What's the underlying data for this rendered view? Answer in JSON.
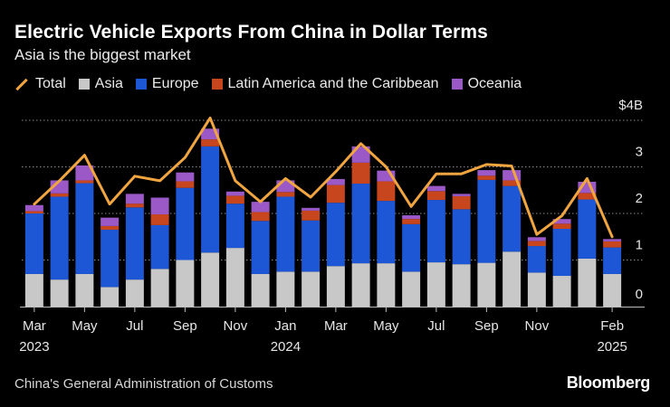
{
  "header": {
    "title": "Electric Vehicle Exports From China in Dollar Terms",
    "subtitle": "Asia is the biggest market"
  },
  "legend": [
    {
      "label": "Total",
      "kind": "line",
      "color": "#f0a540"
    },
    {
      "label": "Asia",
      "kind": "box",
      "color": "#c8c8c8"
    },
    {
      "label": "Europe",
      "kind": "box",
      "color": "#1e57d6"
    },
    {
      "label": "Latin America and the Caribbean",
      "kind": "box",
      "color": "#c8461d"
    },
    {
      "label": "Oceania",
      "kind": "box",
      "color": "#9b59c8"
    }
  ],
  "footer": {
    "source": "China's General Administration of Customs",
    "brand": "Bloomberg"
  },
  "chart_data": {
    "type": "bar",
    "stacked": true,
    "title": "Electric Vehicle Exports From China in Dollar Terms",
    "subtitle": "Asia is the biggest market",
    "unit": "$B",
    "categories": [
      "Mar 2023",
      "Apr 2023",
      "May 2023",
      "Jun 2023",
      "Jul 2023",
      "Aug 2023",
      "Sep 2023",
      "Oct 2023",
      "Nov 2023",
      "Dec 2023",
      "Jan 2024",
      "Feb 2024",
      "Mar 2024",
      "Apr 2024",
      "May 2024",
      "Jun 2024",
      "Jul 2024",
      "Aug 2024",
      "Sep 2024",
      "Oct 2024",
      "Nov 2024",
      "Dec 2024",
      "Jan 2025",
      "Feb 2025"
    ],
    "series": [
      {
        "name": "Asia",
        "color": "#c8c8c8",
        "values": [
          0.7,
          0.58,
          0.7,
          0.42,
          0.58,
          0.81,
          1.0,
          1.16,
          1.26,
          0.7,
          0.75,
          0.75,
          0.87,
          0.93,
          0.93,
          0.75,
          0.95,
          0.91,
          0.94,
          1.18,
          0.73,
          0.66,
          1.03,
          0.7
        ]
      },
      {
        "name": "Europe",
        "color": "#1e57d6",
        "values": [
          1.3,
          1.78,
          1.95,
          1.23,
          1.55,
          0.94,
          1.55,
          2.28,
          0.95,
          1.14,
          1.61,
          1.1,
          1.36,
          1.71,
          1.34,
          1.02,
          1.34,
          1.18,
          1.78,
          1.41,
          0.57,
          1.01,
          1.27,
          0.57
        ]
      },
      {
        "name": "Latin America and the Caribbean",
        "color": "#c8461d",
        "values": [
          0.05,
          0.07,
          0.06,
          0.08,
          0.08,
          0.23,
          0.14,
          0.15,
          0.17,
          0.19,
          0.1,
          0.21,
          0.38,
          0.45,
          0.42,
          0.11,
          0.19,
          0.28,
          0.09,
          0.12,
          0.11,
          0.11,
          0.14,
          0.13
        ]
      },
      {
        "name": "Oceania",
        "color": "#9b59c8",
        "values": [
          0.13,
          0.28,
          0.32,
          0.18,
          0.21,
          0.36,
          0.19,
          0.23,
          0.09,
          0.22,
          0.25,
          0.06,
          0.13,
          0.35,
          0.23,
          0.08,
          0.11,
          0.05,
          0.12,
          0.22,
          0.08,
          0.1,
          0.24,
          0.05
        ]
      }
    ],
    "line_series": {
      "name": "Total",
      "color": "#f0a540",
      "values": [
        2.2,
        2.7,
        3.25,
        2.2,
        2.8,
        2.7,
        3.2,
        4.05,
        2.7,
        2.25,
        2.75,
        2.35,
        2.9,
        3.5,
        3.0,
        2.15,
        2.85,
        2.85,
        3.05,
        3.02,
        1.55,
        1.95,
        2.75,
        1.5
      ]
    },
    "y_axis": {
      "min": 0,
      "max": 4,
      "ticks": [
        0,
        1,
        2,
        3,
        4
      ],
      "tick_labels": [
        "0",
        "1",
        "2",
        "3",
        "$4B"
      ],
      "position": "right",
      "grid": "dotted"
    },
    "x_axis": {
      "tick_labels": [
        {
          "index": 0,
          "label": "Mar",
          "year": "2023"
        },
        {
          "index": 2,
          "label": "May",
          "year": ""
        },
        {
          "index": 4,
          "label": "Jul",
          "year": ""
        },
        {
          "index": 6,
          "label": "Sep",
          "year": ""
        },
        {
          "index": 8,
          "label": "Nov",
          "year": ""
        },
        {
          "index": 10,
          "label": "Jan",
          "year": "2024"
        },
        {
          "index": 12,
          "label": "Mar",
          "year": ""
        },
        {
          "index": 14,
          "label": "May",
          "year": ""
        },
        {
          "index": 16,
          "label": "Jul",
          "year": ""
        },
        {
          "index": 18,
          "label": "Sep",
          "year": ""
        },
        {
          "index": 20,
          "label": "Nov",
          "year": ""
        },
        {
          "index": 23,
          "label": "Feb",
          "year": "2025"
        }
      ]
    },
    "legend_position": "top-left"
  }
}
